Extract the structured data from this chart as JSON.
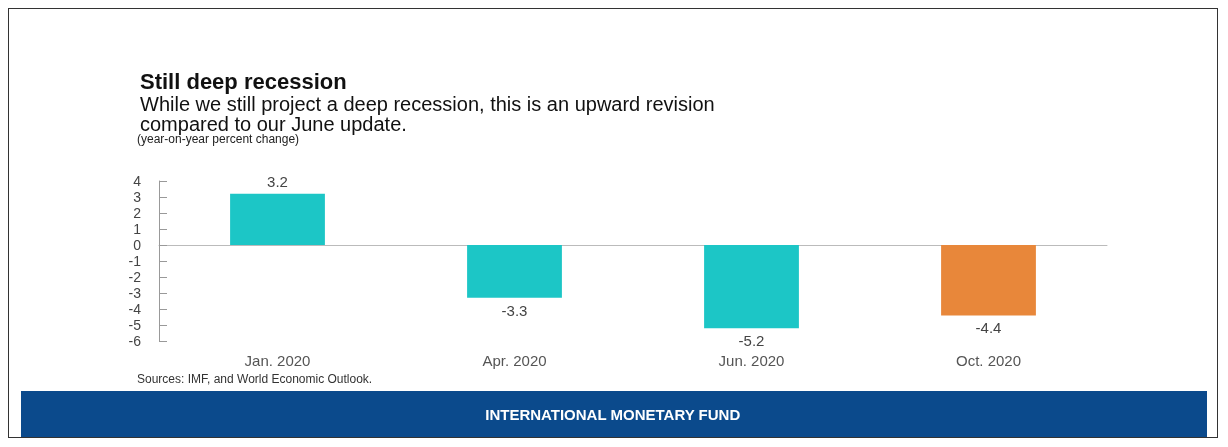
{
  "chart_data": {
    "type": "bar",
    "title": "Still deep recession",
    "subtitle": "While we still project a deep recession, this is an upward revision\ncompared to our June update.",
    "ylabel": "(year-on-year percent change)",
    "categories": [
      "Jan. 2020",
      "Apr. 2020",
      "Jun. 2020",
      "Oct. 2020"
    ],
    "values": [
      3.2,
      -3.3,
      -5.2,
      -4.4
    ],
    "colors": [
      "#1cc6c6",
      "#1cc6c6",
      "#1cc6c6",
      "#e8873a"
    ],
    "ylim": [
      -6,
      4
    ],
    "yticks": [
      -6,
      -5,
      -4,
      -3,
      -2,
      -1,
      0,
      1,
      2,
      3,
      4
    ],
    "data_labels": true,
    "annotations": [
      "Sources: IMF, and World Economic Outlook.",
      "INTERNATIONAL MONETARY FUND"
    ]
  }
}
